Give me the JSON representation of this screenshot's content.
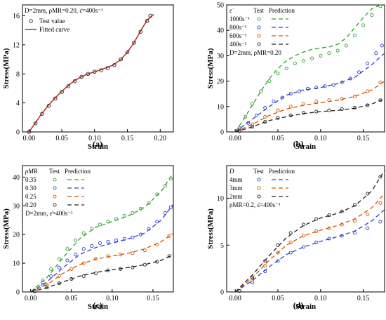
{
  "colors": {
    "red": "#c0392b",
    "green": "#2ca02c",
    "blue": "#2b3dcc",
    "orange": "#d35400",
    "black": "#222222"
  },
  "chart_data": [
    {
      "id": "a",
      "type": "line",
      "panel_label": "(a)",
      "xlabel": "Strain",
      "ylabel": "Stress(MPa)",
      "xlim": [
        -0.01,
        0.22
      ],
      "ylim": [
        0,
        17.5
      ],
      "xticks": [
        0.0,
        0.05,
        0.1,
        0.15,
        0.2
      ],
      "xtick_labels": [
        "0.00",
        "0.05",
        "0.10",
        "0.15",
        "0.20"
      ],
      "yticks": [
        0,
        4,
        8,
        12,
        16
      ],
      "ytick_labels": [
        "0",
        "4",
        "8",
        "12",
        "16"
      ],
      "info": "D=2mm, ρMR=0.20, ε̇=400s⁻¹",
      "legend": [
        "Test value",
        "Fitted curve"
      ],
      "series": [
        {
          "name": "Test value",
          "style": "marker",
          "color": "#222222",
          "x": [
            0.0,
            0.01,
            0.02,
            0.03,
            0.04,
            0.05,
            0.06,
            0.07,
            0.08,
            0.09,
            0.1,
            0.11,
            0.12,
            0.13,
            0.14,
            0.15,
            0.16,
            0.17,
            0.18,
            0.185
          ],
          "y": [
            0.0,
            1.2,
            2.5,
            3.6,
            4.6,
            5.5,
            6.3,
            7.0,
            7.6,
            8.0,
            8.3,
            8.5,
            8.8,
            9.2,
            10.0,
            11.0,
            12.3,
            13.8,
            15.3,
            16.0
          ]
        },
        {
          "name": "Fitted curve",
          "style": "line",
          "color": "#c0392b",
          "x": [
            0.0,
            0.01,
            0.02,
            0.03,
            0.04,
            0.05,
            0.06,
            0.07,
            0.08,
            0.09,
            0.1,
            0.11,
            0.12,
            0.13,
            0.14,
            0.15,
            0.16,
            0.17,
            0.18,
            0.19
          ],
          "y": [
            0.0,
            1.3,
            2.6,
            3.7,
            4.7,
            5.6,
            6.4,
            7.1,
            7.6,
            8.0,
            8.3,
            8.6,
            8.9,
            9.3,
            10.0,
            11.0,
            12.3,
            13.9,
            15.4,
            16.2
          ]
        }
      ]
    },
    {
      "id": "b",
      "type": "line",
      "panel_label": "(b)",
      "xlabel": "Strain",
      "ylabel": "Stress(MPa)",
      "xlim": [
        -0.01,
        0.175
      ],
      "ylim": [
        0,
        50
      ],
      "xticks": [
        0.0,
        0.05,
        0.1,
        0.15
      ],
      "xtick_labels": [
        "0.00",
        "0.05",
        "0.10",
        "0.15"
      ],
      "yticks": [
        0,
        10,
        20,
        30,
        40,
        50
      ],
      "ytick_labels": [
        "0",
        "10",
        "20",
        "30",
        "40",
        "50"
      ],
      "info": "D=2mm, ρMR=0.20",
      "legend_header": [
        "ε̇",
        "Test",
        "Prediction"
      ],
      "series": [
        {
          "name": "1000s⁻¹",
          "color": "#2ca02c",
          "test_x": [
            0.005,
            0.012,
            0.02,
            0.03,
            0.04,
            0.05,
            0.06,
            0.07,
            0.08,
            0.09,
            0.1,
            0.11,
            0.12,
            0.13,
            0.14,
            0.15,
            0.16,
            0.17
          ],
          "test_y": [
            1.5,
            6.0,
            11.0,
            16.0,
            20.0,
            23.0,
            25.0,
            27.0,
            28.0,
            29.0,
            30.0,
            31.0,
            32.0,
            34.0,
            38.0,
            42.0,
            46.0,
            49.5
          ],
          "pred_x": [
            0.0,
            0.01,
            0.02,
            0.03,
            0.04,
            0.05,
            0.06,
            0.07,
            0.08,
            0.09,
            0.1,
            0.11,
            0.12,
            0.13,
            0.14,
            0.15,
            0.16,
            0.17
          ],
          "pred_y": [
            0.0,
            5.0,
            10.5,
            16.0,
            21.0,
            25.0,
            28.0,
            30.0,
            31.5,
            32.5,
            33.0,
            33.5,
            34.5,
            37.0,
            41.0,
            45.0,
            48.5,
            50.0
          ]
        },
        {
          "name": "800s⁻¹",
          "color": "#2b3dcc",
          "test_x": [
            0.005,
            0.015,
            0.025,
            0.035,
            0.045,
            0.055,
            0.065,
            0.075,
            0.085,
            0.095,
            0.105,
            0.115,
            0.125,
            0.135,
            0.145,
            0.155,
            0.165,
            0.172
          ],
          "test_y": [
            1.0,
            3.5,
            6.5,
            9.5,
            12.0,
            13.5,
            15.0,
            16.0,
            17.0,
            17.5,
            18.0,
            18.5,
            19.5,
            21.0,
            23.5,
            27.0,
            31.0,
            34.0
          ],
          "pred_x": [
            0.0,
            0.02,
            0.04,
            0.06,
            0.08,
            0.1,
            0.12,
            0.14,
            0.16,
            0.175
          ],
          "pred_y": [
            0.0,
            5.0,
            10.0,
            14.5,
            16.5,
            17.5,
            19.0,
            21.5,
            26.5,
            31.0
          ]
        },
        {
          "name": "600s⁻¹",
          "color": "#d35400",
          "test_x": [
            0.005,
            0.02,
            0.035,
            0.05,
            0.065,
            0.08,
            0.095,
            0.11,
            0.125,
            0.14,
            0.155,
            0.17
          ],
          "test_y": [
            0.5,
            3.0,
            6.0,
            8.5,
            10.0,
            11.0,
            12.0,
            12.5,
            13.0,
            14.0,
            16.0,
            19.5
          ],
          "pred_x": [
            0.0,
            0.02,
            0.04,
            0.06,
            0.08,
            0.1,
            0.12,
            0.14,
            0.16,
            0.175
          ],
          "pred_y": [
            0.0,
            3.0,
            6.5,
            9.0,
            10.5,
            11.5,
            12.5,
            14.0,
            16.5,
            20.0
          ]
        },
        {
          "name": "400s⁻¹",
          "color": "#222222",
          "test_x": [
            0.005,
            0.02,
            0.035,
            0.05,
            0.065,
            0.08,
            0.095,
            0.11,
            0.125,
            0.14,
            0.155,
            0.17
          ],
          "test_y": [
            0.3,
            2.0,
            4.0,
            5.5,
            6.5,
            7.5,
            8.0,
            8.5,
            9.0,
            9.5,
            10.5,
            12.5
          ],
          "pred_x": [
            0.0,
            0.02,
            0.04,
            0.06,
            0.08,
            0.1,
            0.12,
            0.14,
            0.16,
            0.175
          ],
          "pred_y": [
            0.0,
            2.0,
            4.5,
            6.0,
            7.2,
            8.0,
            8.5,
            9.3,
            11.0,
            13.0
          ]
        }
      ]
    },
    {
      "id": "c",
      "type": "line",
      "panel_label": "(c)",
      "xlabel": "Strain",
      "ylabel": "Stress(MPa)",
      "xlim": [
        -0.01,
        0.175
      ],
      "ylim": [
        0,
        44
      ],
      "xticks": [
        0.0,
        0.05,
        0.1,
        0.15
      ],
      "xtick_labels": [
        "0.00",
        "0.05",
        "0.10",
        "0.15"
      ],
      "yticks": [
        0,
        10,
        20,
        30,
        40
      ],
      "ytick_labels": [
        "0",
        "10",
        "20",
        "30",
        "40"
      ],
      "info": "D=2mm, ε̇=400s⁻¹",
      "legend_header": [
        "ρMR",
        "Test",
        "Prediction"
      ],
      "series": [
        {
          "name": "0.35",
          "color": "#2ca02c",
          "test_x": [
            0.005,
            0.015,
            0.025,
            0.035,
            0.045,
            0.055,
            0.065,
            0.075,
            0.085,
            0.095,
            0.105,
            0.115,
            0.125,
            0.135,
            0.145,
            0.155,
            0.165,
            0.172
          ],
          "test_y": [
            0.5,
            4.0,
            8.0,
            11.5,
            15.0,
            18.0,
            20.5,
            22.0,
            23.5,
            24.5,
            25.5,
            26.5,
            27.5,
            29.0,
            31.0,
            34.0,
            37.0,
            39.5
          ],
          "pred_x": [
            0.0,
            0.02,
            0.04,
            0.06,
            0.08,
            0.1,
            0.12,
            0.14,
            0.16,
            0.175
          ],
          "pred_y": [
            0.0,
            5.0,
            12.0,
            18.5,
            22.5,
            24.5,
            26.5,
            29.5,
            35.0,
            41.5
          ]
        },
        {
          "name": "0.30",
          "color": "#2b3dcc",
          "test_x": [
            0.005,
            0.015,
            0.025,
            0.035,
            0.045,
            0.055,
            0.065,
            0.075,
            0.085,
            0.095,
            0.105,
            0.115,
            0.125,
            0.135,
            0.145,
            0.155,
            0.165,
            0.172
          ],
          "test_y": [
            0.3,
            2.5,
            5.5,
            8.5,
            11.0,
            13.0,
            15.0,
            16.0,
            17.0,
            17.5,
            18.0,
            18.5,
            19.0,
            20.0,
            22.0,
            24.5,
            27.5,
            29.5
          ],
          "pred_x": [
            0.0,
            0.02,
            0.04,
            0.06,
            0.08,
            0.1,
            0.12,
            0.14,
            0.16,
            0.175
          ],
          "pred_y": [
            0.0,
            3.5,
            8.5,
            13.0,
            15.5,
            17.0,
            18.5,
            20.5,
            25.0,
            30.5
          ]
        },
        {
          "name": "0.25",
          "color": "#d35400",
          "test_x": [
            0.005,
            0.02,
            0.035,
            0.05,
            0.065,
            0.08,
            0.095,
            0.11,
            0.125,
            0.14,
            0.155,
            0.17
          ],
          "test_y": [
            0.2,
            2.5,
            5.5,
            8.0,
            10.0,
            11.5,
            12.5,
            13.0,
            13.5,
            14.5,
            16.5,
            19.5
          ],
          "pred_x": [
            0.0,
            0.02,
            0.04,
            0.06,
            0.08,
            0.1,
            0.12,
            0.14,
            0.16,
            0.175
          ],
          "pred_y": [
            0.0,
            2.5,
            6.5,
            9.5,
            11.5,
            12.5,
            13.5,
            15.0,
            17.5,
            20.5
          ]
        },
        {
          "name": "0.20",
          "color": "#222222",
          "test_x": [
            0.005,
            0.02,
            0.035,
            0.05,
            0.065,
            0.08,
            0.095,
            0.11,
            0.125,
            0.14,
            0.155,
            0.17
          ],
          "test_y": [
            0.2,
            1.5,
            3.0,
            4.5,
            5.5,
            6.5,
            7.5,
            8.0,
            8.5,
            9.5,
            10.5,
            12.5
          ],
          "pred_x": [
            0.0,
            0.02,
            0.04,
            0.06,
            0.08,
            0.1,
            0.12,
            0.14,
            0.16,
            0.175
          ],
          "pred_y": [
            0.0,
            1.5,
            3.5,
            5.5,
            6.8,
            7.7,
            8.5,
            9.5,
            11.0,
            13.0
          ]
        }
      ]
    },
    {
      "id": "d",
      "type": "line",
      "panel_label": "(d)",
      "xlabel": "Strain",
      "ylabel": "Stress(MPa)",
      "xlim": [
        -0.01,
        0.175
      ],
      "ylim": [
        0,
        13.5
      ],
      "xticks": [
        0.0,
        0.05,
        0.1,
        0.15
      ],
      "xtick_labels": [
        "0.00",
        "0.05",
        "0.10",
        "0.15"
      ],
      "yticks": [
        0,
        5,
        10
      ],
      "ytick_labels": [
        "0",
        "5",
        "10"
      ],
      "info": "ρMR=0.2, ε̇=400s⁻¹",
      "legend_header": [
        "D",
        "Test",
        "Prediction"
      ],
      "series": [
        {
          "name": "4mm",
          "color": "#2b3dcc",
          "test_x": [
            0.005,
            0.02,
            0.035,
            0.05,
            0.065,
            0.08,
            0.095,
            0.11,
            0.125,
            0.14,
            0.155,
            0.17
          ],
          "test_y": [
            0.1,
            1.0,
            2.2,
            3.3,
            4.2,
            4.8,
            5.3,
            5.7,
            6.0,
            6.3,
            6.8,
            7.5
          ],
          "pred_x": [
            0.0,
            0.02,
            0.04,
            0.06,
            0.08,
            0.1,
            0.12,
            0.14,
            0.16,
            0.175
          ],
          "pred_y": [
            0.0,
            1.2,
            2.7,
            4.0,
            4.8,
            5.4,
            5.9,
            6.5,
            7.6,
            8.8
          ]
        },
        {
          "name": "3mm",
          "color": "#d35400",
          "test_x": [
            0.005,
            0.02,
            0.035,
            0.05,
            0.065,
            0.08,
            0.095,
            0.11,
            0.125,
            0.14,
            0.155,
            0.17
          ],
          "test_y": [
            0.1,
            1.3,
            2.8,
            4.2,
            5.3,
            6.0,
            6.5,
            6.8,
            7.2,
            7.6,
            8.3,
            9.5
          ],
          "pred_x": [
            0.0,
            0.02,
            0.04,
            0.06,
            0.08,
            0.1,
            0.12,
            0.14,
            0.16,
            0.175
          ],
          "pred_y": [
            0.0,
            1.5,
            3.4,
            5.0,
            6.0,
            6.6,
            7.1,
            7.8,
            9.0,
            10.5
          ]
        },
        {
          "name": "2mm",
          "color": "#222222",
          "test_x": [
            0.005,
            0.02,
            0.035,
            0.05,
            0.065,
            0.08,
            0.095,
            0.11,
            0.125,
            0.14,
            0.155,
            0.17
          ],
          "test_y": [
            0.1,
            1.5,
            3.3,
            5.0,
            6.3,
            7.2,
            7.8,
            8.2,
            8.6,
            9.3,
            10.5,
            12.3
          ],
          "pred_x": [
            0.0,
            0.02,
            0.04,
            0.06,
            0.08,
            0.1,
            0.12,
            0.14,
            0.16,
            0.175
          ],
          "pred_y": [
            0.0,
            1.8,
            3.9,
            5.8,
            7.1,
            7.9,
            8.4,
            9.2,
            10.8,
            13.0
          ]
        }
      ]
    }
  ]
}
